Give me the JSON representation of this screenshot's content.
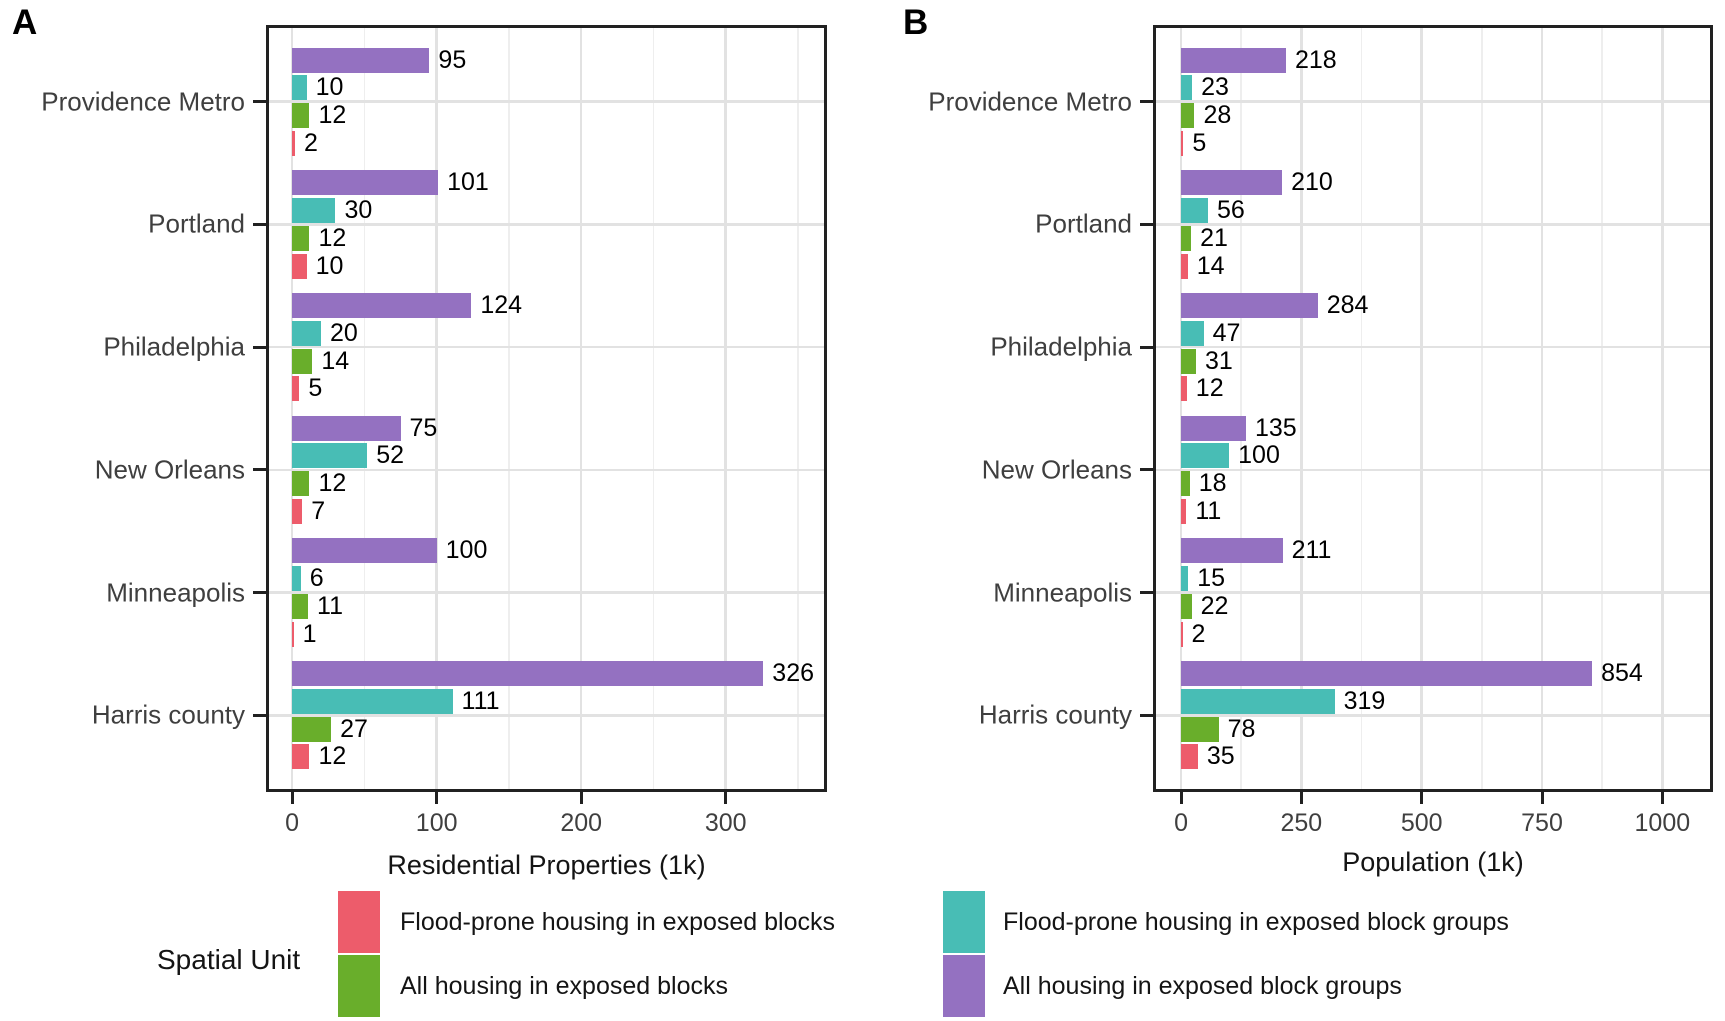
{
  "figure": {
    "panel_a_label": "A",
    "panel_b_label": "B",
    "xlabel_a": "Residential Properties (1k)",
    "xlabel_b": "Population (1k)"
  },
  "colors": {
    "purple": "#9471C1",
    "teal": "#48BDB5",
    "green": "#69AE2B",
    "red": "#ED5C6B",
    "grid_major": "#E2E2E2",
    "grid_minor": "#EEEEEE",
    "frame": "#212121",
    "axis_text": "#3F3F3F",
    "label_text": "#000000"
  },
  "categories": [
    "Providence Metro",
    "Portland",
    "Philadelphia",
    "New Orleans",
    "Minneapolis",
    "Harris county"
  ],
  "chart_data": [
    {
      "id": "A",
      "panel_label": "A",
      "type": "bar",
      "orientation": "horizontal",
      "xlabel": "Residential Properties (1k)",
      "ylabel": "",
      "categories": [
        "Providence Metro",
        "Portland",
        "Philadelphia",
        "New Orleans",
        "Minneapolis",
        "Harris county"
      ],
      "series": [
        {
          "name": "All housing in exposed block groups",
          "color_key": "purple",
          "values": [
            95,
            101,
            124,
            75,
            100,
            326
          ]
        },
        {
          "name": "Flood-prone housing in exposed block groups",
          "color_key": "teal",
          "values": [
            10,
            30,
            20,
            52,
            6,
            111
          ]
        },
        {
          "name": "All housing in exposed blocks",
          "color_key": "green",
          "values": [
            12,
            12,
            14,
            12,
            11,
            27
          ]
        },
        {
          "name": "Flood-prone housing in exposed blocks",
          "color_key": "red",
          "values": [
            2,
            10,
            5,
            7,
            1,
            12
          ]
        }
      ],
      "xticks": [
        0,
        100,
        200,
        300
      ],
      "minor_xticks": [
        50,
        150,
        250,
        350
      ],
      "xlim": [
        -16,
        368
      ],
      "grid": true,
      "value_labels": true,
      "legend_position": "bottom"
    },
    {
      "id": "B",
      "panel_label": "B",
      "type": "bar",
      "orientation": "horizontal",
      "xlabel": "Population (1k)",
      "ylabel": "",
      "categories": [
        "Providence Metro",
        "Portland",
        "Philadelphia",
        "New Orleans",
        "Minneapolis",
        "Harris county"
      ],
      "series": [
        {
          "name": "All housing in exposed block groups",
          "color_key": "purple",
          "values": [
            218,
            210,
            284,
            135,
            211,
            854
          ]
        },
        {
          "name": "Flood-prone housing in exposed block groups",
          "color_key": "teal",
          "values": [
            23,
            56,
            47,
            100,
            15,
            319
          ]
        },
        {
          "name": "All housing in exposed blocks",
          "color_key": "green",
          "values": [
            28,
            21,
            31,
            18,
            22,
            78
          ]
        },
        {
          "name": "Flood-prone housing in exposed blocks",
          "color_key": "red",
          "values": [
            5,
            14,
            12,
            11,
            2,
            35
          ]
        }
      ],
      "xticks": [
        0,
        250,
        500,
        750,
        1000
      ],
      "minor_xticks": [
        125,
        375,
        625,
        875
      ],
      "xlim": [
        -52,
        1099
      ],
      "grid": true,
      "value_labels": true,
      "legend_position": "bottom"
    }
  ],
  "legend": {
    "title": "Spatial Unit",
    "columns": [
      [
        {
          "label": "Flood-prone housing in exposed blocks",
          "color_key": "red"
        },
        {
          "label": "All housing in exposed blocks",
          "color_key": "green"
        }
      ],
      [
        {
          "label": "Flood-prone housing in exposed block groups",
          "color_key": "teal"
        },
        {
          "label": "All housing in exposed block groups",
          "color_key": "purple"
        }
      ]
    ]
  }
}
